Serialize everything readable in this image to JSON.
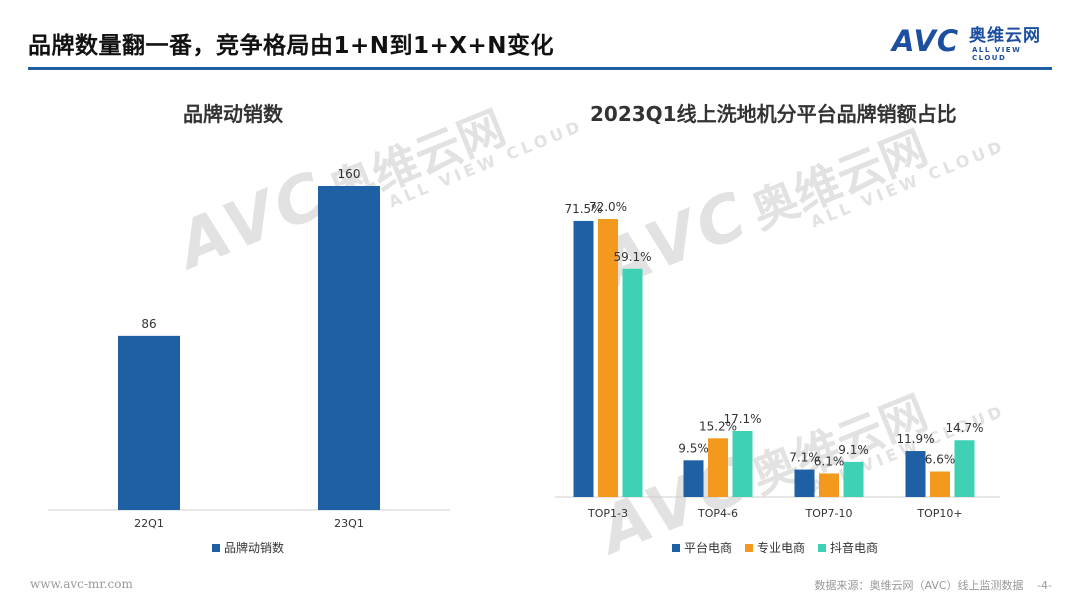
{
  "page_title": "品牌数量翻一番，竞争格局由1+N到1+X+N变化",
  "logo": {
    "mark": "AVC",
    "cn": "奥维云网",
    "en": "ALL VIEW CLOUD"
  },
  "watermark": {
    "mark": "AVC",
    "cn": "奥维云网",
    "en": "ALL VIEW CLOUD"
  },
  "colors": {
    "blue": "#1f5fa3",
    "orange": "#f39a1e",
    "teal": "#3ed1b5",
    "rule": "#1f5fa3"
  },
  "chart_data": [
    {
      "type": "bar",
      "title": "品牌动销数",
      "categories": [
        "22Q1",
        "23Q1"
      ],
      "series": [
        {
          "name": "品牌动销数",
          "values": [
            86,
            160
          ]
        }
      ],
      "ylim": [
        0,
        180
      ],
      "legend_position": "bottom",
      "grid": false
    },
    {
      "type": "bar",
      "title": "2023Q1线上洗地机分平台品牌销额占比",
      "categories": [
        "TOP1-3",
        "TOP4-6",
        "TOP7-10",
        "TOP10+"
      ],
      "series": [
        {
          "name": "平台电商",
          "values": [
            71.5,
            9.5,
            7.1,
            11.9
          ],
          "labels": [
            "71.5%",
            "9.5%",
            "7.1%",
            "11.9%"
          ]
        },
        {
          "name": "专业电商",
          "values": [
            72.0,
            15.2,
            6.1,
            6.6
          ],
          "labels": [
            "72.0%",
            "15.2%",
            "6.1%",
            "6.6%"
          ]
        },
        {
          "name": "抖音电商",
          "values": [
            59.1,
            17.1,
            9.1,
            14.7
          ],
          "labels": [
            "59.1%",
            "17.1%",
            "9.1%",
            "14.7%"
          ]
        }
      ],
      "ylim": [
        0,
        80
      ],
      "unit": "%",
      "legend_position": "bottom",
      "grid": false
    }
  ],
  "footer": {
    "website": "www.avc-mr.com",
    "source": "数据来源：奥维云网（AVC）线上监测数据",
    "page": "-4-"
  }
}
